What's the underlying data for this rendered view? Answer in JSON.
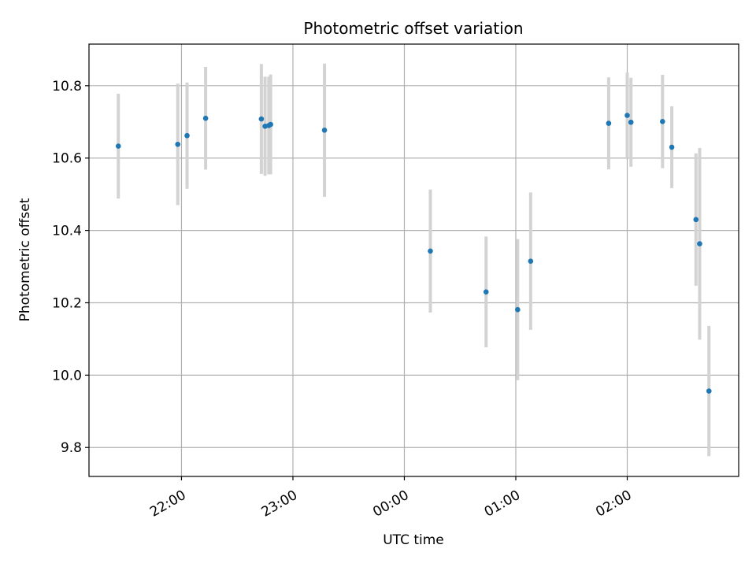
{
  "chart_data": {
    "type": "scatter",
    "title": "Photometric offset variation",
    "xlabel": "UTC time",
    "ylabel": "Photometric offset",
    "x_is_time": true,
    "x_tick_labels": [
      "22:00",
      "23:00",
      "00:00",
      "01:00",
      "02:00"
    ],
    "x_tick_values": [
      22.0,
      23.0,
      24.0,
      25.0,
      26.0
    ],
    "xlim": [
      21.17,
      27.0
    ],
    "y_ticks": [
      9.8,
      10.0,
      10.2,
      10.4,
      10.6,
      10.8
    ],
    "y_tick_labels": [
      "9.8",
      "10.0",
      "10.2",
      "10.4",
      "10.6",
      "10.8"
    ],
    "ylim": [
      9.72,
      10.915
    ],
    "grid": true,
    "points": [
      {
        "x": "21:26",
        "y": 10.633,
        "yerr": 0.145
      },
      {
        "x": "21:58",
        "y": 10.638,
        "yerr": 0.168
      },
      {
        "x": "22:03",
        "y": 10.662,
        "yerr": 0.147
      },
      {
        "x": "22:13",
        "y": 10.71,
        "yerr": 0.142
      },
      {
        "x": "22:43",
        "y": 10.708,
        "yerr": 0.152
      },
      {
        "x": "22:45",
        "y": 10.688,
        "yerr": 0.137
      },
      {
        "x": "22:47",
        "y": 10.69,
        "yerr": 0.135
      },
      {
        "x": "22:48",
        "y": 10.693,
        "yerr": 0.138
      },
      {
        "x": "23:17",
        "y": 10.677,
        "yerr": 0.184
      },
      {
        "x": "00:14",
        "y": 10.343,
        "yerr": 0.17
      },
      {
        "x": "00:44",
        "y": 10.23,
        "yerr": 0.153
      },
      {
        "x": "01:01",
        "y": 10.181,
        "yerr": 0.195
      },
      {
        "x": "01:08",
        "y": 10.315,
        "yerr": 0.19
      },
      {
        "x": "01:50",
        "y": 10.696,
        "yerr": 0.127
      },
      {
        "x": "02:00",
        "y": 10.718,
        "yerr": 0.118
      },
      {
        "x": "02:02",
        "y": 10.699,
        "yerr": 0.123
      },
      {
        "x": "02:19",
        "y": 10.701,
        "yerr": 0.129
      },
      {
        "x": "02:24",
        "y": 10.63,
        "yerr": 0.113
      },
      {
        "x": "02:37",
        "y": 10.43,
        "yerr": 0.183
      },
      {
        "x": "02:39",
        "y": 10.363,
        "yerr": 0.265
      },
      {
        "x": "02:44",
        "y": 9.956,
        "yerr": 0.18
      }
    ],
    "colors": {
      "marker": "#1f77b4",
      "errorbar": "#d3d3d3",
      "grid": "#b0b0b0",
      "axes": "#000000"
    }
  }
}
